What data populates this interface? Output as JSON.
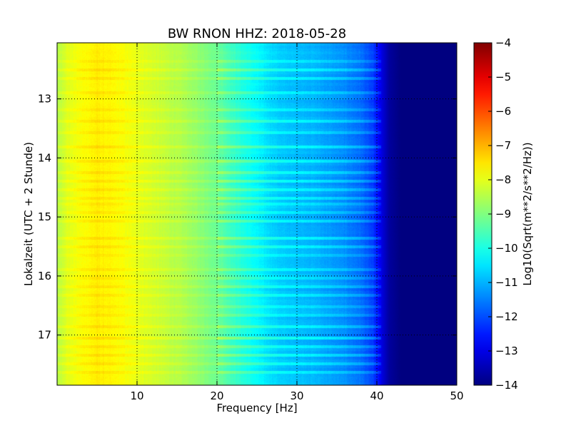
{
  "chart_data": {
    "type": "heatmap",
    "title": "BW RNON HHZ: 2018-05-28",
    "xlabel": "Frequency [Hz]",
    "ylabel": "Lokalzeit (UTC + 2 Stunde)",
    "xlim": [
      0,
      50
    ],
    "ylim": [
      12.05,
      17.85
    ],
    "y_inverted": true,
    "x_ticks": [
      10,
      20,
      30,
      40,
      50
    ],
    "y_ticks": [
      13,
      14,
      15,
      16,
      17
    ],
    "grid": true,
    "colorbar": {
      "label": "Log10(Sqrt(m**2/s**2/Hz))",
      "colormap": "jet",
      "range": [
        -14,
        -4
      ],
      "ticks": [
        -4,
        -5,
        -6,
        -7,
        -8,
        -9,
        -10,
        -11,
        -12,
        -13,
        -14
      ]
    },
    "spectrum_profile": {
      "frequency_hz": [
        0,
        1,
        3,
        5,
        8,
        10,
        13,
        16,
        18,
        20,
        22,
        24,
        26,
        28,
        30,
        32,
        34,
        36,
        38,
        39.5,
        40.5,
        41.5,
        43,
        46,
        50
      ],
      "log_amplitude": [
        -8.5,
        -8.1,
        -7.8,
        -7.6,
        -7.8,
        -8.0,
        -8.3,
        -8.6,
        -8.9,
        -9.2,
        -9.7,
        -10.1,
        -10.5,
        -10.8,
        -10.9,
        -11.0,
        -11.2,
        -11.4,
        -11.7,
        -12.2,
        -13.0,
        -13.7,
        -14.0,
        -14.0,
        -14.0
      ]
    },
    "noise_bands_hours": [
      12.35,
      12.47,
      12.62,
      12.85,
      13.18,
      13.35,
      13.55,
      13.78,
      14.05,
      14.22,
      14.38,
      14.52,
      14.65,
      14.78,
      14.92,
      15.05,
      15.32,
      15.48,
      15.65,
      15.88,
      16.02,
      16.18,
      16.32,
      16.48,
      16.65,
      16.82,
      17.02,
      17.15,
      17.32,
      17.48,
      17.62
    ]
  }
}
